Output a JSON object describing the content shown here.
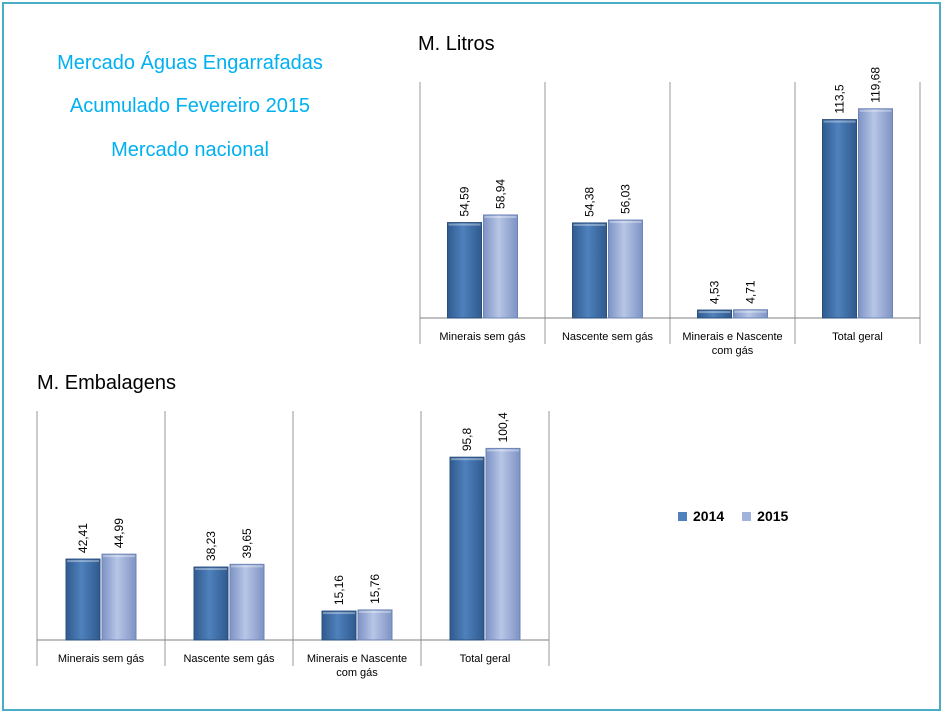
{
  "heading": {
    "line1": "Mercado Águas Engarrafadas",
    "line2": "Acumulado Fevereiro 2015",
    "line3": "Mercado nacional"
  },
  "colors": {
    "series_2014": "#4f81bd",
    "series_2015": "#9fb3dc",
    "heading": "#00b0f0",
    "border": "#4bacc6"
  },
  "legend": {
    "items": [
      "2014",
      "2015"
    ],
    "placement": "right"
  },
  "chart_data": [
    {
      "type": "bar",
      "title": "M. Litros",
      "categories": [
        "Minerais sem gás",
        "Nascente sem gás",
        "Minerais e Nascente com gás",
        "Total geral"
      ],
      "series": [
        {
          "name": "2014",
          "values": [
            54.59,
            54.38,
            4.53,
            113.5
          ],
          "labels": [
            "54,59",
            "54,38",
            "4,53",
            "113,5"
          ]
        },
        {
          "name": "2015",
          "values": [
            58.94,
            56.03,
            4.71,
            119.68
          ],
          "labels": [
            "58,94",
            "56,03",
            "4,71",
            "119,68"
          ]
        }
      ],
      "ylim": [
        0,
        135
      ],
      "grid": false,
      "legend": "right"
    },
    {
      "type": "bar",
      "title": "M. Embalagens",
      "categories": [
        "Minerais sem gás",
        "Nascente sem gás",
        "Minerais e Nascente com gás",
        "Total geral"
      ],
      "series": [
        {
          "name": "2014",
          "values": [
            42.41,
            38.23,
            15.16,
            95.8
          ],
          "labels": [
            "42,41",
            "38,23",
            "15,16",
            "95,8"
          ]
        },
        {
          "name": "2015",
          "values": [
            44.99,
            39.65,
            15.76,
            100.4
          ],
          "labels": [
            "44,99",
            "39,65",
            "15,76",
            "100,4"
          ]
        }
      ],
      "ylim": [
        0,
        120
      ],
      "grid": false,
      "legend": "right"
    }
  ]
}
